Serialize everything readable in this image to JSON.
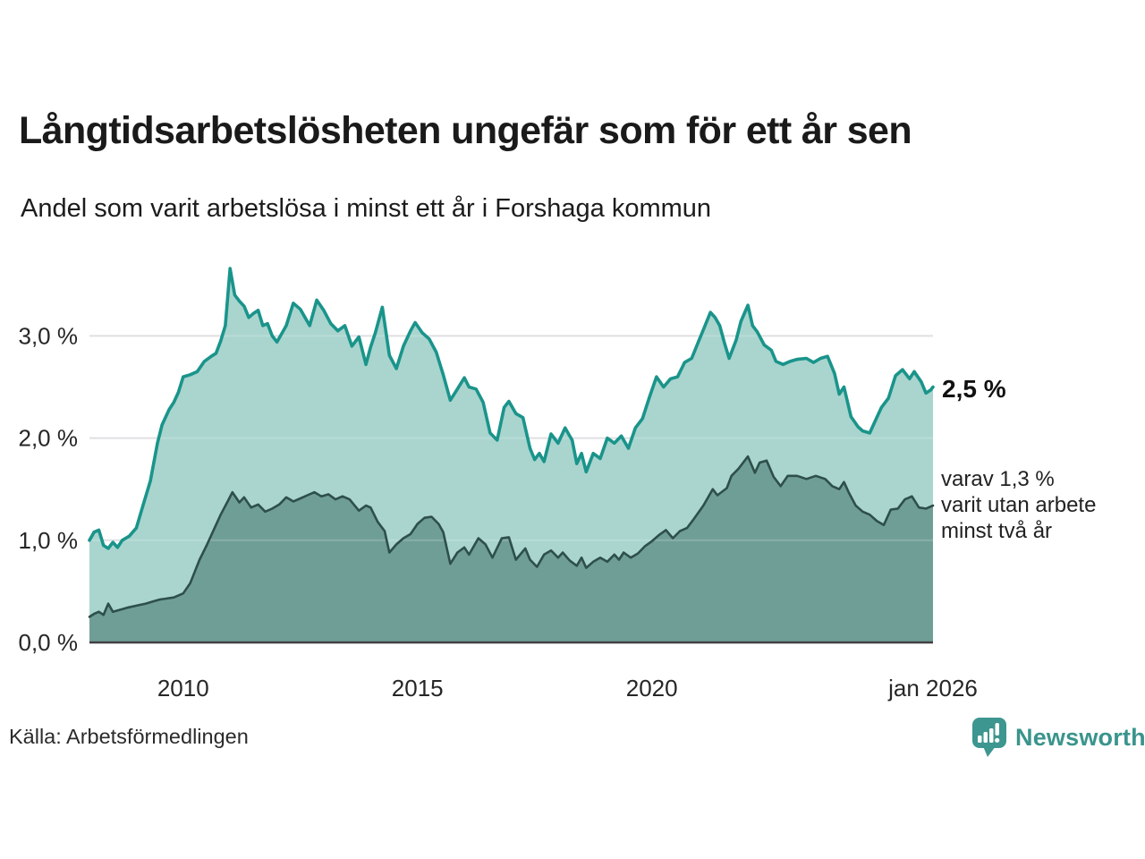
{
  "chart_data": {
    "type": "area",
    "title": "Långtidsarbetslösheten ungefär som för ett år sen",
    "subtitle": "Andel som varit arbetslösa i minst ett år i Forshaga kommun",
    "xlim": [
      2008,
      2026
    ],
    "ylim": [
      0,
      3.8
    ],
    "grid": "on",
    "legend_position": "right-annotations",
    "x_ticks": [
      {
        "x": 2010,
        "label": "2010"
      },
      {
        "x": 2015,
        "label": "2015"
      },
      {
        "x": 2020,
        "label": "2020"
      },
      {
        "x": 2026,
        "label": "jan 2026"
      }
    ],
    "y_ticks": [
      {
        "v": 0,
        "label": "0,0 %"
      },
      {
        "v": 1,
        "label": "1,0 %"
      },
      {
        "v": 2,
        "label": "2,0 %"
      },
      {
        "v": 3,
        "label": "3,0 %"
      }
    ],
    "colors": {
      "grid": "#d9d9de",
      "axis": "#414141",
      "label": "#262626",
      "accent_teal": "#1a948b",
      "brand_teal": "#3a948d"
    },
    "series": [
      {
        "id": "long-term-one-year",
        "name": "Andel arbetslösa minst ett år",
        "line_color": "#1a948b",
        "fill_color": "#a9d5ce",
        "end_value": 2.5,
        "values": [
          [
            2008.0,
            1.0
          ],
          [
            2008.1,
            1.08
          ],
          [
            2008.2,
            1.1
          ],
          [
            2008.3,
            0.95
          ],
          [
            2008.4,
            0.92
          ],
          [
            2008.5,
            0.98
          ],
          [
            2008.6,
            0.93
          ],
          [
            2008.7,
            1.0
          ],
          [
            2008.85,
            1.04
          ],
          [
            2009.0,
            1.12
          ],
          [
            2009.15,
            1.35
          ],
          [
            2009.3,
            1.58
          ],
          [
            2009.45,
            1.95
          ],
          [
            2009.55,
            2.13
          ],
          [
            2009.7,
            2.28
          ],
          [
            2009.8,
            2.35
          ],
          [
            2009.9,
            2.45
          ],
          [
            2010.0,
            2.6
          ],
          [
            2010.15,
            2.62
          ],
          [
            2010.3,
            2.65
          ],
          [
            2010.45,
            2.75
          ],
          [
            2010.6,
            2.8
          ],
          [
            2010.7,
            2.83
          ],
          [
            2010.8,
            2.95
          ],
          [
            2010.9,
            3.1
          ],
          [
            2011.0,
            3.66
          ],
          [
            2011.1,
            3.4
          ],
          [
            2011.2,
            3.34
          ],
          [
            2011.3,
            3.29
          ],
          [
            2011.4,
            3.18
          ],
          [
            2011.5,
            3.22
          ],
          [
            2011.6,
            3.25
          ],
          [
            2011.7,
            3.1
          ],
          [
            2011.8,
            3.12
          ],
          [
            2011.9,
            3.0
          ],
          [
            2012.0,
            2.94
          ],
          [
            2012.1,
            3.02
          ],
          [
            2012.2,
            3.1
          ],
          [
            2012.35,
            3.32
          ],
          [
            2012.5,
            3.26
          ],
          [
            2012.6,
            3.18
          ],
          [
            2012.7,
            3.1
          ],
          [
            2012.85,
            3.35
          ],
          [
            2013.0,
            3.25
          ],
          [
            2013.15,
            3.12
          ],
          [
            2013.3,
            3.05
          ],
          [
            2013.45,
            3.1
          ],
          [
            2013.6,
            2.9
          ],
          [
            2013.75,
            2.99
          ],
          [
            2013.9,
            2.72
          ],
          [
            2014.0,
            2.89
          ],
          [
            2014.1,
            3.03
          ],
          [
            2014.25,
            3.28
          ],
          [
            2014.4,
            2.81
          ],
          [
            2014.55,
            2.68
          ],
          [
            2014.7,
            2.9
          ],
          [
            2014.85,
            3.05
          ],
          [
            2014.95,
            3.13
          ],
          [
            2015.1,
            3.03
          ],
          [
            2015.25,
            2.97
          ],
          [
            2015.4,
            2.84
          ],
          [
            2015.55,
            2.62
          ],
          [
            2015.7,
            2.37
          ],
          [
            2015.85,
            2.48
          ],
          [
            2016.0,
            2.59
          ],
          [
            2016.1,
            2.5
          ],
          [
            2016.25,
            2.48
          ],
          [
            2016.4,
            2.35
          ],
          [
            2016.55,
            2.05
          ],
          [
            2016.7,
            1.98
          ],
          [
            2016.85,
            2.3
          ],
          [
            2016.95,
            2.36
          ],
          [
            2017.1,
            2.24
          ],
          [
            2017.25,
            2.2
          ],
          [
            2017.4,
            1.9
          ],
          [
            2017.5,
            1.79
          ],
          [
            2017.6,
            1.85
          ],
          [
            2017.7,
            1.77
          ],
          [
            2017.85,
            2.04
          ],
          [
            2018.0,
            1.95
          ],
          [
            2018.15,
            2.1
          ],
          [
            2018.3,
            1.98
          ],
          [
            2018.4,
            1.75
          ],
          [
            2018.5,
            1.85
          ],
          [
            2018.6,
            1.67
          ],
          [
            2018.75,
            1.85
          ],
          [
            2018.9,
            1.8
          ],
          [
            2019.05,
            2.0
          ],
          [
            2019.2,
            1.95
          ],
          [
            2019.35,
            2.02
          ],
          [
            2019.5,
            1.9
          ],
          [
            2019.65,
            2.1
          ],
          [
            2019.8,
            2.19
          ],
          [
            2019.95,
            2.4
          ],
          [
            2020.1,
            2.6
          ],
          [
            2020.25,
            2.5
          ],
          [
            2020.4,
            2.58
          ],
          [
            2020.55,
            2.6
          ],
          [
            2020.7,
            2.74
          ],
          [
            2020.85,
            2.78
          ],
          [
            2021.0,
            2.95
          ],
          [
            2021.1,
            3.06
          ],
          [
            2021.25,
            3.23
          ],
          [
            2021.35,
            3.18
          ],
          [
            2021.45,
            3.1
          ],
          [
            2021.55,
            2.93
          ],
          [
            2021.65,
            2.78
          ],
          [
            2021.8,
            2.96
          ],
          [
            2021.9,
            3.14
          ],
          [
            2022.05,
            3.3
          ],
          [
            2022.15,
            3.1
          ],
          [
            2022.25,
            3.04
          ],
          [
            2022.4,
            2.91
          ],
          [
            2022.55,
            2.86
          ],
          [
            2022.65,
            2.75
          ],
          [
            2022.8,
            2.72
          ],
          [
            2022.95,
            2.75
          ],
          [
            2023.1,
            2.77
          ],
          [
            2023.3,
            2.78
          ],
          [
            2023.45,
            2.74
          ],
          [
            2023.6,
            2.78
          ],
          [
            2023.75,
            2.8
          ],
          [
            2023.9,
            2.63
          ],
          [
            2024.0,
            2.43
          ],
          [
            2024.1,
            2.5
          ],
          [
            2024.25,
            2.21
          ],
          [
            2024.4,
            2.11
          ],
          [
            2024.5,
            2.07
          ],
          [
            2024.65,
            2.05
          ],
          [
            2024.75,
            2.15
          ],
          [
            2024.9,
            2.3
          ],
          [
            2025.05,
            2.39
          ],
          [
            2025.2,
            2.61
          ],
          [
            2025.35,
            2.67
          ],
          [
            2025.5,
            2.58
          ],
          [
            2025.6,
            2.65
          ],
          [
            2025.75,
            2.55
          ],
          [
            2025.85,
            2.44
          ],
          [
            2025.95,
            2.47
          ],
          [
            2026.0,
            2.5
          ]
        ]
      },
      {
        "id": "very-long-term-two-years",
        "name": "varav utan arbete minst två år",
        "line_color": "#2e4f4a",
        "fill_color": "#6f9e97",
        "end_value": 1.3,
        "values": [
          [
            2008.0,
            0.25
          ],
          [
            2008.1,
            0.28
          ],
          [
            2008.2,
            0.3
          ],
          [
            2008.3,
            0.27
          ],
          [
            2008.4,
            0.38
          ],
          [
            2008.5,
            0.3
          ],
          [
            2008.65,
            0.32
          ],
          [
            2008.8,
            0.34
          ],
          [
            2009.0,
            0.36
          ],
          [
            2009.2,
            0.38
          ],
          [
            2009.35,
            0.4
          ],
          [
            2009.5,
            0.42
          ],
          [
            2009.65,
            0.43
          ],
          [
            2009.8,
            0.44
          ],
          [
            2010.0,
            0.48
          ],
          [
            2010.15,
            0.58
          ],
          [
            2010.35,
            0.81
          ],
          [
            2010.5,
            0.95
          ],
          [
            2010.65,
            1.1
          ],
          [
            2010.8,
            1.25
          ],
          [
            2010.95,
            1.38
          ],
          [
            2011.05,
            1.47
          ],
          [
            2011.2,
            1.37
          ],
          [
            2011.3,
            1.42
          ],
          [
            2011.45,
            1.32
          ],
          [
            2011.6,
            1.35
          ],
          [
            2011.75,
            1.28
          ],
          [
            2011.9,
            1.31
          ],
          [
            2012.05,
            1.35
          ],
          [
            2012.2,
            1.42
          ],
          [
            2012.35,
            1.38
          ],
          [
            2012.5,
            1.41
          ],
          [
            2012.65,
            1.44
          ],
          [
            2012.8,
            1.47
          ],
          [
            2012.95,
            1.43
          ],
          [
            2013.1,
            1.45
          ],
          [
            2013.25,
            1.4
          ],
          [
            2013.4,
            1.43
          ],
          [
            2013.55,
            1.4
          ],
          [
            2013.75,
            1.29
          ],
          [
            2013.9,
            1.34
          ],
          [
            2014.0,
            1.32
          ],
          [
            2014.15,
            1.18
          ],
          [
            2014.3,
            1.09
          ],
          [
            2014.4,
            0.88
          ],
          [
            2014.55,
            0.96
          ],
          [
            2014.7,
            1.02
          ],
          [
            2014.85,
            1.06
          ],
          [
            2015.0,
            1.16
          ],
          [
            2015.15,
            1.22
          ],
          [
            2015.3,
            1.23
          ],
          [
            2015.45,
            1.16
          ],
          [
            2015.55,
            1.08
          ],
          [
            2015.7,
            0.77
          ],
          [
            2015.85,
            0.88
          ],
          [
            2016.0,
            0.93
          ],
          [
            2016.1,
            0.86
          ],
          [
            2016.3,
            1.02
          ],
          [
            2016.45,
            0.96
          ],
          [
            2016.6,
            0.83
          ],
          [
            2016.8,
            1.02
          ],
          [
            2016.95,
            1.03
          ],
          [
            2017.1,
            0.81
          ],
          [
            2017.3,
            0.92
          ],
          [
            2017.4,
            0.81
          ],
          [
            2017.55,
            0.74
          ],
          [
            2017.7,
            0.86
          ],
          [
            2017.85,
            0.9
          ],
          [
            2018.0,
            0.83
          ],
          [
            2018.1,
            0.88
          ],
          [
            2018.25,
            0.8
          ],
          [
            2018.4,
            0.75
          ],
          [
            2018.5,
            0.83
          ],
          [
            2018.6,
            0.73
          ],
          [
            2018.75,
            0.79
          ],
          [
            2018.9,
            0.83
          ],
          [
            2019.05,
            0.79
          ],
          [
            2019.2,
            0.86
          ],
          [
            2019.3,
            0.81
          ],
          [
            2019.4,
            0.88
          ],
          [
            2019.55,
            0.83
          ],
          [
            2019.7,
            0.87
          ],
          [
            2019.85,
            0.94
          ],
          [
            2020.0,
            0.99
          ],
          [
            2020.15,
            1.05
          ],
          [
            2020.3,
            1.1
          ],
          [
            2020.45,
            1.02
          ],
          [
            2020.6,
            1.09
          ],
          [
            2020.75,
            1.12
          ],
          [
            2020.9,
            1.21
          ],
          [
            2021.1,
            1.34
          ],
          [
            2021.3,
            1.5
          ],
          [
            2021.4,
            1.44
          ],
          [
            2021.6,
            1.51
          ],
          [
            2021.7,
            1.63
          ],
          [
            2021.85,
            1.7
          ],
          [
            2022.05,
            1.82
          ],
          [
            2022.2,
            1.66
          ],
          [
            2022.3,
            1.76
          ],
          [
            2022.45,
            1.78
          ],
          [
            2022.6,
            1.62
          ],
          [
            2022.75,
            1.53
          ],
          [
            2022.9,
            1.63
          ],
          [
            2023.1,
            1.63
          ],
          [
            2023.3,
            1.6
          ],
          [
            2023.5,
            1.63
          ],
          [
            2023.7,
            1.6
          ],
          [
            2023.85,
            1.53
          ],
          [
            2024.0,
            1.5
          ],
          [
            2024.1,
            1.57
          ],
          [
            2024.2,
            1.47
          ],
          [
            2024.35,
            1.34
          ],
          [
            2024.5,
            1.28
          ],
          [
            2024.65,
            1.25
          ],
          [
            2024.8,
            1.19
          ],
          [
            2024.95,
            1.15
          ],
          [
            2025.1,
            1.3
          ],
          [
            2025.25,
            1.31
          ],
          [
            2025.4,
            1.4
          ],
          [
            2025.55,
            1.43
          ],
          [
            2025.7,
            1.32
          ],
          [
            2025.85,
            1.31
          ],
          [
            2026.0,
            1.34
          ]
        ]
      }
    ]
  },
  "annotations": {
    "series1_end_label": "2,5 %",
    "series2_end_label": "varav 1,3 %\nvarit utan arbete\nminst två år"
  },
  "footer": {
    "source": "Källa: Arbetsförmedlingen",
    "brand": "Newsworthy"
  }
}
